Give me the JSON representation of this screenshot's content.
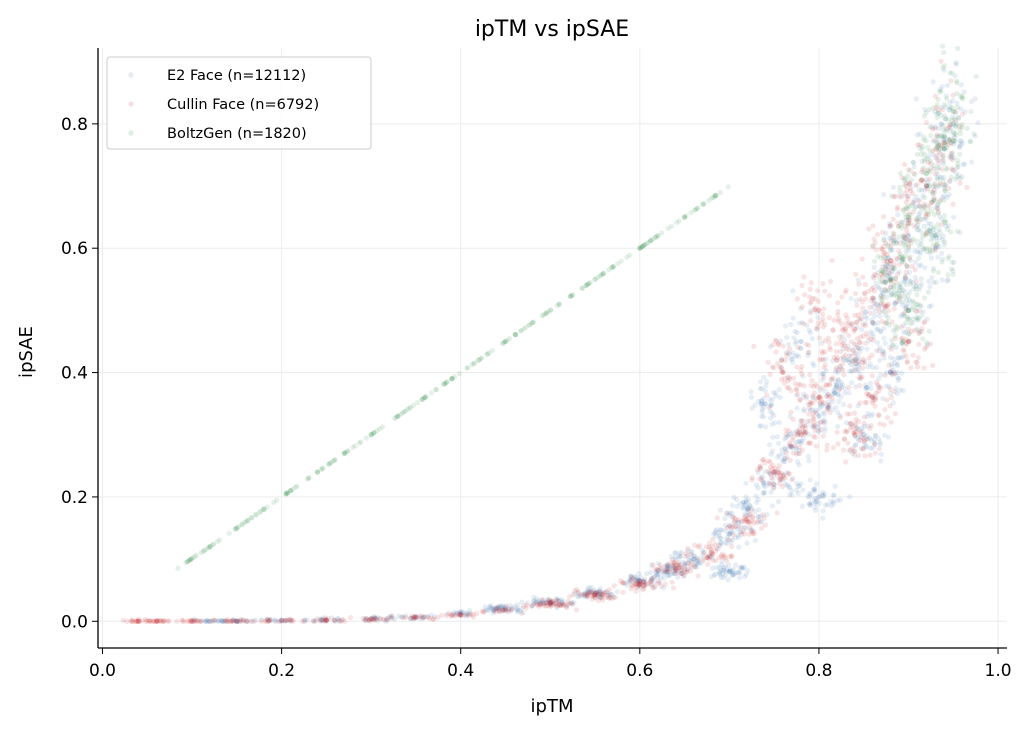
{
  "chart_data": {
    "type": "scatter",
    "title": "ipTM vs ipSAE",
    "xlabel": "ipTM",
    "ylabel": "ipSAE",
    "xlim": [
      -0.005,
      1.01
    ],
    "ylim": [
      -0.043,
      0.922
    ],
    "xticks": [
      "0.0",
      "0.2",
      "0.4",
      "0.6",
      "0.8",
      "1.0"
    ],
    "yticks": [
      "0.0",
      "0.2",
      "0.4",
      "0.6",
      "0.8"
    ],
    "grid": true,
    "legend_position": "top-left",
    "series": [
      {
        "name": "E2 Face (n=12112)",
        "color": "#3a75b0",
        "points": [
          [
            0.12,
            0
          ],
          [
            0.15,
            0
          ],
          [
            0.2,
            0.001
          ],
          [
            0.25,
            0.002
          ],
          [
            0.3,
            0.004
          ],
          [
            0.35,
            0.007
          ],
          [
            0.4,
            0.012
          ],
          [
            0.45,
            0.02
          ],
          [
            0.5,
            0.03
          ],
          [
            0.55,
            0.045
          ],
          [
            0.6,
            0.065
          ],
          [
            0.63,
            0.08
          ],
          [
            0.66,
            0.1
          ],
          [
            0.7,
            0.14
          ],
          [
            0.72,
            0.18
          ],
          [
            0.75,
            0.22
          ],
          [
            0.77,
            0.28
          ],
          [
            0.8,
            0.33
          ],
          [
            0.82,
            0.38
          ],
          [
            0.84,
            0.42
          ],
          [
            0.86,
            0.48
          ],
          [
            0.88,
            0.55
          ],
          [
            0.9,
            0.62
          ],
          [
            0.92,
            0.7
          ],
          [
            0.94,
            0.76
          ],
          [
            0.95,
            0.8
          ],
          [
            0.74,
            0.35
          ],
          [
            0.78,
            0.45
          ],
          [
            0.85,
            0.3
          ],
          [
            0.88,
            0.4
          ],
          [
            0.8,
            0.2
          ],
          [
            0.7,
            0.08
          ],
          [
            0.9,
            0.5
          ],
          [
            0.93,
            0.6
          ]
        ]
      },
      {
        "name": "Cullin Face (n=6792)",
        "color": "#c81d25",
        "points": [
          [
            0.04,
            0
          ],
          [
            0.06,
            0
          ],
          [
            0.1,
            0
          ],
          [
            0.15,
            0
          ],
          [
            0.2,
            0.001
          ],
          [
            0.25,
            0.002
          ],
          [
            0.3,
            0.004
          ],
          [
            0.35,
            0.006
          ],
          [
            0.4,
            0.01
          ],
          [
            0.45,
            0.018
          ],
          [
            0.5,
            0.028
          ],
          [
            0.55,
            0.042
          ],
          [
            0.6,
            0.06
          ],
          [
            0.64,
            0.085
          ],
          [
            0.68,
            0.11
          ],
          [
            0.72,
            0.16
          ],
          [
            0.75,
            0.24
          ],
          [
            0.78,
            0.3
          ],
          [
            0.8,
            0.36
          ],
          [
            0.82,
            0.42
          ],
          [
            0.84,
            0.47
          ],
          [
            0.86,
            0.52
          ],
          [
            0.88,
            0.58
          ],
          [
            0.9,
            0.64
          ],
          [
            0.92,
            0.7
          ],
          [
            0.94,
            0.77
          ],
          [
            0.76,
            0.4
          ],
          [
            0.8,
            0.5
          ],
          [
            0.84,
            0.3
          ],
          [
            0.86,
            0.36
          ],
          [
            0.9,
            0.45
          ]
        ]
      },
      {
        "name": "BoltzGen (n=1820)",
        "color": "#2a8a45",
        "points": [
          [
            0.095,
            0.096
          ],
          [
            0.12,
            0.12
          ],
          [
            0.15,
            0.15
          ],
          [
            0.18,
            0.18
          ],
          [
            0.21,
            0.21
          ],
          [
            0.24,
            0.24
          ],
          [
            0.27,
            0.27
          ],
          [
            0.3,
            0.3
          ],
          [
            0.33,
            0.33
          ],
          [
            0.36,
            0.36
          ],
          [
            0.39,
            0.39
          ],
          [
            0.42,
            0.42
          ],
          [
            0.45,
            0.45
          ],
          [
            0.48,
            0.48
          ],
          [
            0.51,
            0.51
          ],
          [
            0.54,
            0.54
          ],
          [
            0.57,
            0.57
          ],
          [
            0.6,
            0.6
          ],
          [
            0.62,
            0.62
          ],
          [
            0.65,
            0.65
          ],
          [
            0.685,
            0.685
          ],
          [
            0.88,
            0.55
          ],
          [
            0.9,
            0.65
          ],
          [
            0.92,
            0.72
          ],
          [
            0.94,
            0.78
          ],
          [
            0.95,
            0.82
          ],
          [
            0.9,
            0.5
          ],
          [
            0.93,
            0.62
          ]
        ]
      }
    ]
  }
}
